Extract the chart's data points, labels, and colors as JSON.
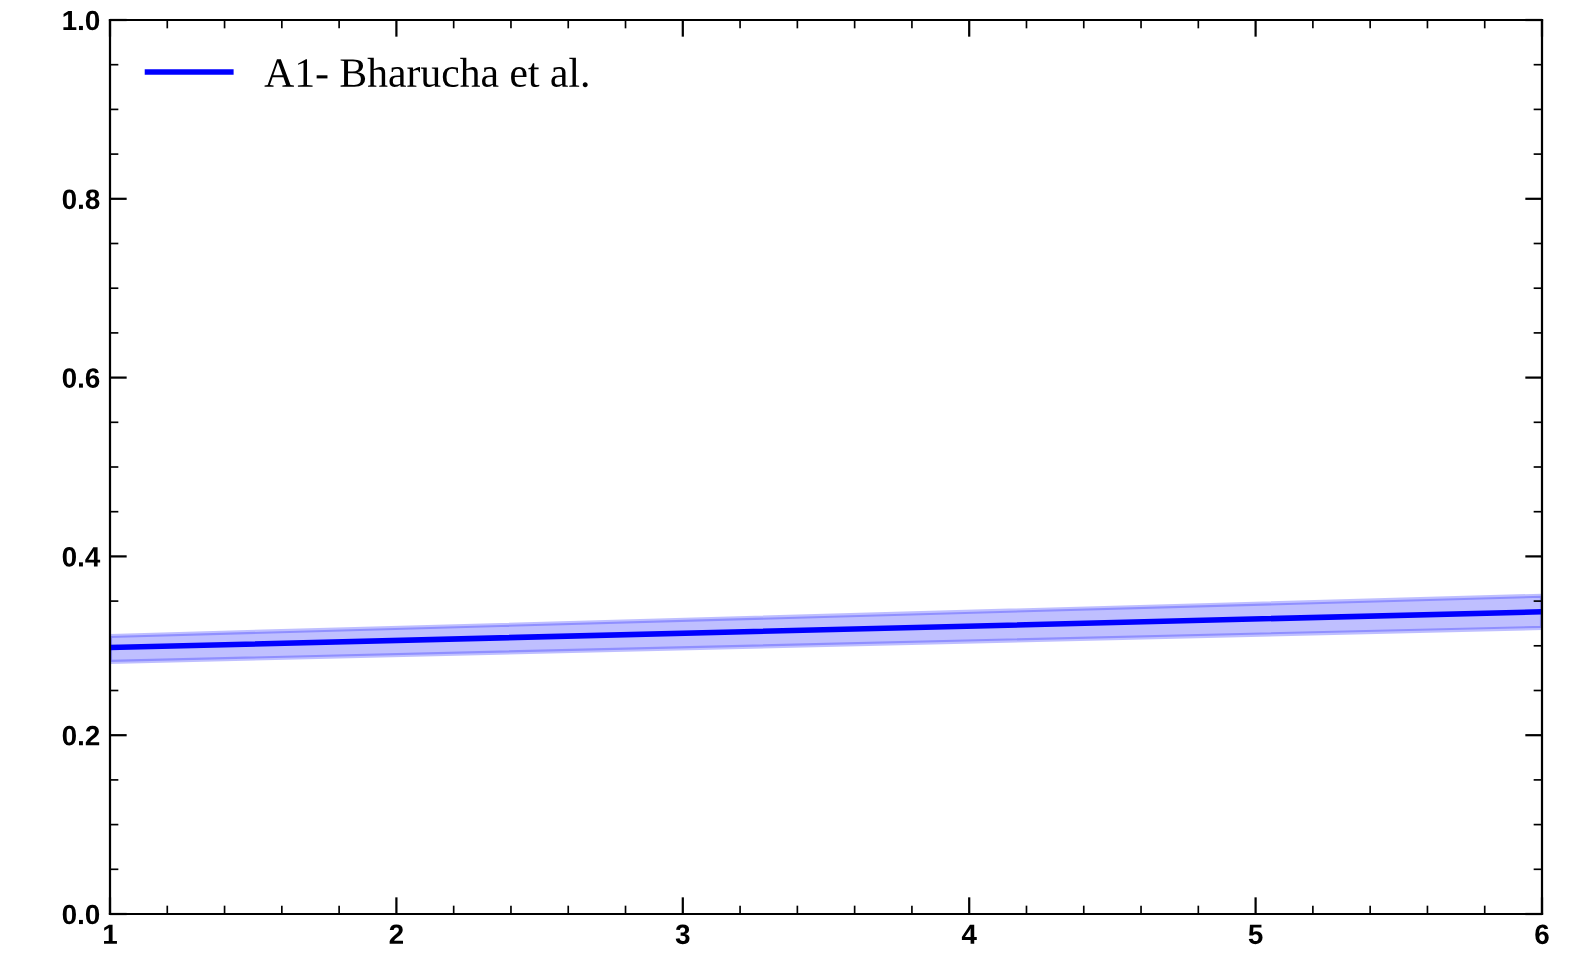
{
  "chart_data": {
    "type": "line",
    "x": [
      1,
      6
    ],
    "xlim": [
      1,
      6
    ],
    "ylim": [
      0,
      1.0
    ],
    "xticks": [
      1,
      2,
      3,
      4,
      5,
      6
    ],
    "yticks": [
      {
        "value": 0,
        "label": "0.0"
      },
      {
        "value": 0.2,
        "label": "0.2"
      },
      {
        "value": 0.4,
        "label": "0.4"
      },
      {
        "value": 0.6,
        "label": "0.6"
      },
      {
        "value": 0.8,
        "label": "0.8"
      },
      {
        "value": 1.0,
        "label": "1.0"
      }
    ],
    "grid": false,
    "legend": "top left",
    "series": [
      {
        "name": "A1- Bharucha et al.",
        "color": "#0000ff",
        "values": [
          0.298,
          0.338
        ],
        "lower": [
          0.282,
          0.32
        ],
        "upper": [
          0.311,
          0.356
        ]
      }
    ]
  }
}
